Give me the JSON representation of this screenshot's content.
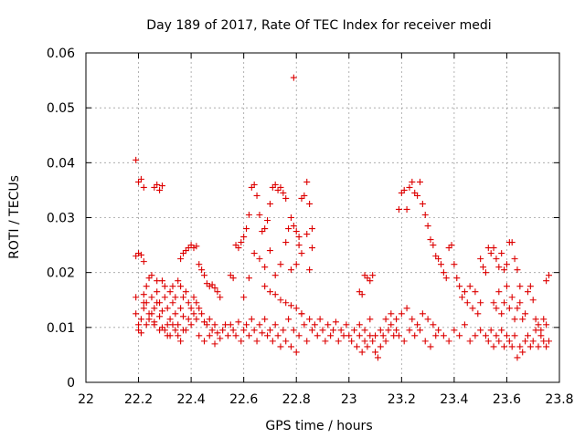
{
  "chart_data": {
    "type": "scatter",
    "title": "Day 189 of 2017, Rate Of TEC Index for receiver medi",
    "xlabel": "GPS time / hours",
    "ylabel": "ROTI / TECUs",
    "xlim": [
      22,
      23.8
    ],
    "ylim": [
      0,
      0.06
    ],
    "xticks": [
      "22",
      "22.2",
      "22.4",
      "22.6",
      "22.8",
      "23",
      "23.2",
      "23.4",
      "23.6",
      "23.8"
    ],
    "yticks": [
      "0",
      "0.01",
      "0.02",
      "0.03",
      "0.04",
      "0.05",
      "0.06"
    ],
    "grid": true,
    "marker": "+",
    "color": "#dd0000",
    "points": [
      [
        22.19,
        0.0405
      ],
      [
        22.2,
        0.0365
      ],
      [
        22.21,
        0.037
      ],
      [
        22.22,
        0.0355
      ],
      [
        22.26,
        0.0355
      ],
      [
        22.27,
        0.036
      ],
      [
        22.28,
        0.035
      ],
      [
        22.29,
        0.0358
      ],
      [
        22.19,
        0.023
      ],
      [
        22.2,
        0.0235
      ],
      [
        22.21,
        0.0232
      ],
      [
        22.22,
        0.022
      ],
      [
        22.19,
        0.0155
      ],
      [
        22.19,
        0.0125
      ],
      [
        22.2,
        0.0105
      ],
      [
        22.2,
        0.0095
      ],
      [
        22.21,
        0.009
      ],
      [
        22.21,
        0.0115
      ],
      [
        22.22,
        0.0135
      ],
      [
        22.22,
        0.016
      ],
      [
        22.23,
        0.0175
      ],
      [
        22.23,
        0.0145
      ],
      [
        22.24,
        0.019
      ],
      [
        22.24,
        0.0125
      ],
      [
        22.25,
        0.0195
      ],
      [
        22.25,
        0.0155
      ],
      [
        22.26,
        0.0135
      ],
      [
        22.26,
        0.011
      ],
      [
        22.27,
        0.0185
      ],
      [
        22.27,
        0.0165
      ],
      [
        22.28,
        0.0145
      ],
      [
        22.28,
        0.012
      ],
      [
        22.29,
        0.0185
      ],
      [
        22.29,
        0.01
      ],
      [
        22.3,
        0.0175
      ],
      [
        22.3,
        0.0155
      ],
      [
        22.31,
        0.0135
      ],
      [
        22.31,
        0.0085
      ],
      [
        22.32,
        0.0165
      ],
      [
        22.32,
        0.0115
      ],
      [
        22.33,
        0.0175
      ],
      [
        22.33,
        0.0145
      ],
      [
        22.34,
        0.0155
      ],
      [
        22.34,
        0.0125
      ],
      [
        22.35,
        0.0185
      ],
      [
        22.35,
        0.0105
      ],
      [
        22.36,
        0.0175
      ],
      [
        22.36,
        0.0135
      ],
      [
        22.37,
        0.0155
      ],
      [
        22.37,
        0.012
      ],
      [
        22.38,
        0.0165
      ],
      [
        22.38,
        0.0095
      ],
      [
        22.39,
        0.0145
      ],
      [
        22.39,
        0.0115
      ],
      [
        22.4,
        0.0135
      ],
      [
        22.4,
        0.0105
      ],
      [
        22.41,
        0.0125
      ],
      [
        22.41,
        0.0155
      ],
      [
        22.42,
        0.0115
      ],
      [
        22.42,
        0.0145
      ],
      [
        22.22,
        0.0145
      ],
      [
        22.24,
        0.0115
      ],
      [
        22.26,
        0.0105
      ],
      [
        22.28,
        0.0095
      ],
      [
        22.3,
        0.0095
      ],
      [
        22.32,
        0.0085
      ],
      [
        22.34,
        0.0095
      ],
      [
        22.36,
        0.0075
      ],
      [
        22.23,
        0.0105
      ],
      [
        22.25,
        0.0125
      ],
      [
        22.27,
        0.0145
      ],
      [
        22.29,
        0.013
      ],
      [
        22.31,
        0.0105
      ],
      [
        22.33,
        0.0105
      ],
      [
        22.35,
        0.0085
      ],
      [
        22.37,
        0.0095
      ],
      [
        22.36,
        0.0225
      ],
      [
        22.37,
        0.0235
      ],
      [
        22.38,
        0.024
      ],
      [
        22.39,
        0.0245
      ],
      [
        22.4,
        0.025
      ],
      [
        22.41,
        0.0245
      ],
      [
        22.42,
        0.0248
      ],
      [
        22.43,
        0.0215
      ],
      [
        22.44,
        0.0205
      ],
      [
        22.45,
        0.0195
      ],
      [
        22.46,
        0.018
      ],
      [
        22.47,
        0.0175
      ],
      [
        22.48,
        0.0178
      ],
      [
        22.49,
        0.0172
      ],
      [
        22.5,
        0.0165
      ],
      [
        22.51,
        0.0155
      ],
      [
        22.43,
        0.0135
      ],
      [
        22.44,
        0.0125
      ],
      [
        22.45,
        0.011
      ],
      [
        22.46,
        0.0105
      ],
      [
        22.47,
        0.0115
      ],
      [
        22.48,
        0.0095
      ],
      [
        22.49,
        0.0105
      ],
      [
        22.5,
        0.009
      ],
      [
        22.43,
        0.0085
      ],
      [
        22.45,
        0.0075
      ],
      [
        22.47,
        0.0085
      ],
      [
        22.49,
        0.007
      ],
      [
        22.51,
        0.008
      ],
      [
        22.52,
        0.0095
      ],
      [
        22.53,
        0.0105
      ],
      [
        22.54,
        0.0085
      ],
      [
        22.55,
        0.0195
      ],
      [
        22.56,
        0.019
      ],
      [
        22.57,
        0.025
      ],
      [
        22.58,
        0.0245
      ],
      [
        22.59,
        0.0255
      ],
      [
        22.6,
        0.0265
      ],
      [
        22.61,
        0.028
      ],
      [
        22.62,
        0.0305
      ],
      [
        22.63,
        0.0355
      ],
      [
        22.64,
        0.036
      ],
      [
        22.65,
        0.034
      ],
      [
        22.66,
        0.0305
      ],
      [
        22.67,
        0.0275
      ],
      [
        22.68,
        0.028
      ],
      [
        22.69,
        0.0295
      ],
      [
        22.7,
        0.0325
      ],
      [
        22.71,
        0.0355
      ],
      [
        22.72,
        0.036
      ],
      [
        22.73,
        0.035
      ],
      [
        22.74,
        0.0355
      ],
      [
        22.75,
        0.0345
      ],
      [
        22.76,
        0.0335
      ],
      [
        22.77,
        0.028
      ],
      [
        22.78,
        0.03
      ],
      [
        22.79,
        0.0285
      ],
      [
        22.8,
        0.0275
      ],
      [
        22.81,
        0.0265
      ],
      [
        22.82,
        0.0335
      ],
      [
        22.83,
        0.034
      ],
      [
        22.84,
        0.0365
      ],
      [
        22.85,
        0.0325
      ],
      [
        22.86,
        0.028
      ],
      [
        22.6,
        0.0155
      ],
      [
        22.62,
        0.019
      ],
      [
        22.64,
        0.0235
      ],
      [
        22.66,
        0.0225
      ],
      [
        22.68,
        0.021
      ],
      [
        22.7,
        0.024
      ],
      [
        22.72,
        0.0195
      ],
      [
        22.74,
        0.0215
      ],
      [
        22.76,
        0.0255
      ],
      [
        22.78,
        0.0205
      ],
      [
        22.8,
        0.0215
      ],
      [
        22.81,
        0.025
      ],
      [
        22.82,
        0.0235
      ],
      [
        22.84,
        0.027
      ],
      [
        22.85,
        0.0205
      ],
      [
        22.86,
        0.0245
      ],
      [
        22.68,
        0.0175
      ],
      [
        22.7,
        0.0165
      ],
      [
        22.72,
        0.016
      ],
      [
        22.74,
        0.015
      ],
      [
        22.76,
        0.0145
      ],
      [
        22.78,
        0.014
      ],
      [
        22.8,
        0.0135
      ],
      [
        22.82,
        0.0125
      ],
      [
        22.79,
        0.0555
      ],
      [
        22.55,
        0.0105
      ],
      [
        22.56,
        0.0095
      ],
      [
        22.57,
        0.0085
      ],
      [
        22.58,
        0.011
      ],
      [
        22.59,
        0.0075
      ],
      [
        22.6,
        0.0095
      ],
      [
        22.61,
        0.0105
      ],
      [
        22.62,
        0.0085
      ],
      [
        22.63,
        0.0115
      ],
      [
        22.64,
        0.0095
      ],
      [
        22.65,
        0.0075
      ],
      [
        22.66,
        0.0105
      ],
      [
        22.67,
        0.009
      ],
      [
        22.68,
        0.0115
      ],
      [
        22.69,
        0.0085
      ],
      [
        22.7,
        0.0095
      ],
      [
        22.71,
        0.0075
      ],
      [
        22.72,
        0.0105
      ],
      [
        22.73,
        0.0085
      ],
      [
        22.74,
        0.0065
      ],
      [
        22.75,
        0.0095
      ],
      [
        22.76,
        0.0075
      ],
      [
        22.77,
        0.0115
      ],
      [
        22.78,
        0.0065
      ],
      [
        22.79,
        0.0095
      ],
      [
        22.8,
        0.0055
      ],
      [
        22.81,
        0.0085
      ],
      [
        22.82,
        0.0125
      ],
      [
        22.83,
        0.0105
      ],
      [
        22.84,
        0.0075
      ],
      [
        22.85,
        0.0115
      ],
      [
        22.86,
        0.0095
      ],
      [
        22.87,
        0.0105
      ],
      [
        22.88,
        0.0085
      ],
      [
        22.89,
        0.0115
      ],
      [
        22.9,
        0.0095
      ],
      [
        22.91,
        0.0075
      ],
      [
        22.92,
        0.0105
      ],
      [
        22.93,
        0.0085
      ],
      [
        22.94,
        0.0095
      ],
      [
        22.95,
        0.011
      ],
      [
        22.96,
        0.0075
      ],
      [
        22.97,
        0.0095
      ],
      [
        22.98,
        0.0085
      ],
      [
        22.99,
        0.0105
      ],
      [
        23.0,
        0.0085
      ],
      [
        23.01,
        0.0075
      ],
      [
        23.02,
        0.0095
      ],
      [
        23.03,
        0.0065
      ],
      [
        23.04,
        0.0085
      ],
      [
        23.05,
        0.0055
      ],
      [
        23.06,
        0.0075
      ],
      [
        23.07,
        0.0065
      ],
      [
        23.08,
        0.0085
      ],
      [
        23.09,
        0.0075
      ],
      [
        23.1,
        0.0055
      ],
      [
        23.11,
        0.0045
      ],
      [
        23.12,
        0.0065
      ],
      [
        23.13,
        0.0085
      ],
      [
        23.14,
        0.0075
      ],
      [
        23.15,
        0.0095
      ],
      [
        23.16,
        0.0105
      ],
      [
        23.17,
        0.0085
      ],
      [
        23.18,
        0.0115
      ],
      [
        23.04,
        0.0165
      ],
      [
        23.05,
        0.016
      ],
      [
        23.06,
        0.0195
      ],
      [
        23.07,
        0.019
      ],
      [
        23.08,
        0.0185
      ],
      [
        23.09,
        0.0195
      ],
      [
        23.04,
        0.0105
      ],
      [
        23.06,
        0.0095
      ],
      [
        23.08,
        0.0115
      ],
      [
        23.1,
        0.0085
      ],
      [
        23.12,
        0.0095
      ],
      [
        23.14,
        0.0115
      ],
      [
        23.16,
        0.0125
      ],
      [
        23.18,
        0.0095
      ],
      [
        23.19,
        0.0315
      ],
      [
        23.2,
        0.0345
      ],
      [
        23.21,
        0.035
      ],
      [
        23.22,
        0.0315
      ],
      [
        23.23,
        0.0355
      ],
      [
        23.24,
        0.0365
      ],
      [
        23.25,
        0.0345
      ],
      [
        23.26,
        0.034
      ],
      [
        23.27,
        0.0365
      ],
      [
        23.28,
        0.0325
      ],
      [
        23.29,
        0.0305
      ],
      [
        23.3,
        0.0285
      ],
      [
        23.31,
        0.026
      ],
      [
        23.32,
        0.025
      ],
      [
        23.33,
        0.023
      ],
      [
        23.34,
        0.0225
      ],
      [
        23.35,
        0.0215
      ],
      [
        23.36,
        0.02
      ],
      [
        23.37,
        0.019
      ],
      [
        23.38,
        0.0245
      ],
      [
        23.39,
        0.025
      ],
      [
        23.4,
        0.0215
      ],
      [
        23.41,
        0.019
      ],
      [
        23.42,
        0.0175
      ],
      [
        23.2,
        0.0125
      ],
      [
        23.22,
        0.0135
      ],
      [
        23.24,
        0.0115
      ],
      [
        23.26,
        0.0105
      ],
      [
        23.28,
        0.0125
      ],
      [
        23.3,
        0.0115
      ],
      [
        23.32,
        0.0105
      ],
      [
        23.34,
        0.0095
      ],
      [
        23.36,
        0.0085
      ],
      [
        23.38,
        0.0075
      ],
      [
        23.4,
        0.0095
      ],
      [
        23.42,
        0.0085
      ],
      [
        23.44,
        0.0105
      ],
      [
        23.46,
        0.0075
      ],
      [
        23.48,
        0.0085
      ],
      [
        23.5,
        0.0095
      ],
      [
        23.19,
        0.0085
      ],
      [
        23.21,
        0.0075
      ],
      [
        23.23,
        0.0095
      ],
      [
        23.25,
        0.0085
      ],
      [
        23.27,
        0.0095
      ],
      [
        23.29,
        0.0075
      ],
      [
        23.31,
        0.0065
      ],
      [
        23.33,
        0.0085
      ],
      [
        23.43,
        0.0155
      ],
      [
        23.44,
        0.0165
      ],
      [
        23.45,
        0.0145
      ],
      [
        23.46,
        0.0175
      ],
      [
        23.47,
        0.0135
      ],
      [
        23.48,
        0.0165
      ],
      [
        23.49,
        0.0125
      ],
      [
        23.5,
        0.0145
      ],
      [
        23.5,
        0.0225
      ],
      [
        23.51,
        0.021
      ],
      [
        23.52,
        0.02
      ],
      [
        23.53,
        0.0245
      ],
      [
        23.54,
        0.0235
      ],
      [
        23.55,
        0.0245
      ],
      [
        23.56,
        0.0225
      ],
      [
        23.57,
        0.021
      ],
      [
        23.58,
        0.0235
      ],
      [
        23.59,
        0.0205
      ],
      [
        23.6,
        0.0215
      ],
      [
        23.61,
        0.0255
      ],
      [
        23.62,
        0.0255
      ],
      [
        23.63,
        0.0225
      ],
      [
        23.64,
        0.0205
      ],
      [
        23.65,
        0.0175
      ],
      [
        23.55,
        0.0145
      ],
      [
        23.56,
        0.0135
      ],
      [
        23.57,
        0.0165
      ],
      [
        23.58,
        0.0125
      ],
      [
        23.59,
        0.0145
      ],
      [
        23.6,
        0.0175
      ],
      [
        23.61,
        0.0135
      ],
      [
        23.62,
        0.0155
      ],
      [
        23.63,
        0.0115
      ],
      [
        23.64,
        0.0135
      ],
      [
        23.65,
        0.0145
      ],
      [
        23.66,
        0.0115
      ],
      [
        23.67,
        0.0125
      ],
      [
        23.68,
        0.0165
      ],
      [
        23.69,
        0.0175
      ],
      [
        23.7,
        0.015
      ],
      [
        23.52,
        0.0085
      ],
      [
        23.53,
        0.0075
      ],
      [
        23.54,
        0.0095
      ],
      [
        23.55,
        0.0065
      ],
      [
        23.56,
        0.0085
      ],
      [
        23.57,
        0.0075
      ],
      [
        23.58,
        0.0095
      ],
      [
        23.59,
        0.0065
      ],
      [
        23.6,
        0.0085
      ],
      [
        23.61,
        0.0075
      ],
      [
        23.62,
        0.0065
      ],
      [
        23.63,
        0.0085
      ],
      [
        23.64,
        0.0045
      ],
      [
        23.65,
        0.0065
      ],
      [
        23.66,
        0.0055
      ],
      [
        23.67,
        0.0075
      ],
      [
        23.68,
        0.0085
      ],
      [
        23.69,
        0.0065
      ],
      [
        23.7,
        0.0075
      ],
      [
        23.71,
        0.0095
      ],
      [
        23.72,
        0.0065
      ],
      [
        23.73,
        0.0085
      ],
      [
        23.74,
        0.0075
      ],
      [
        23.75,
        0.0065
      ],
      [
        23.71,
        0.0115
      ],
      [
        23.72,
        0.0105
      ],
      [
        23.73,
        0.0095
      ],
      [
        23.74,
        0.0115
      ],
      [
        23.75,
        0.0185
      ],
      [
        23.76,
        0.0195
      ],
      [
        23.76,
        0.0075
      ],
      [
        23.75,
        0.0105
      ]
    ]
  }
}
